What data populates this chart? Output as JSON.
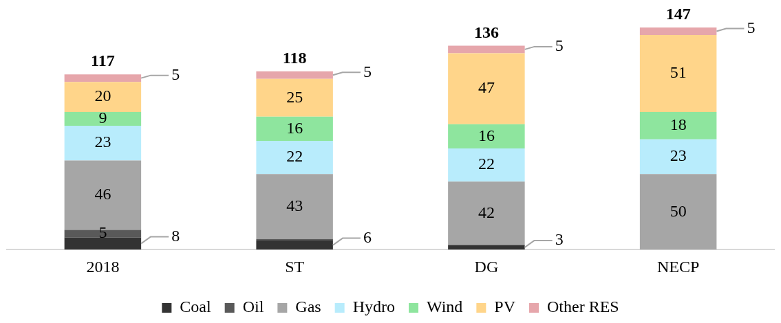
{
  "chart_data": {
    "type": "bar",
    "stacked": true,
    "categories": [
      "2018",
      "ST",
      "DG",
      "NECP"
    ],
    "series": [
      {
        "name": "Coal",
        "color": "#333333",
        "values": [
          8,
          6,
          3,
          null
        ],
        "value_labels": [
          "8",
          "6",
          "3",
          null
        ]
      },
      {
        "name": "Oil",
        "color": "#595959",
        "values": [
          5,
          1,
          null,
          null
        ],
        "value_labels": [
          "5",
          null,
          null,
          null
        ]
      },
      {
        "name": "Gas",
        "color": "#a6a6a6",
        "values": [
          46,
          43,
          42,
          50
        ],
        "value_labels": [
          "46",
          "43",
          "42",
          "50"
        ]
      },
      {
        "name": "Hydro",
        "color": "#b8ecfc",
        "values": [
          23,
          22,
          22,
          23
        ],
        "value_labels": [
          "23",
          "22",
          "22",
          "23"
        ]
      },
      {
        "name": "Wind",
        "color": "#8ee59e",
        "values": [
          9,
          16,
          16,
          18
        ],
        "value_labels": [
          "9",
          "16",
          "16",
          "18"
        ]
      },
      {
        "name": "PV",
        "color": "#ffd58a",
        "values": [
          20,
          25,
          47,
          51
        ],
        "value_labels": [
          "20",
          "25",
          "47",
          "51"
        ]
      },
      {
        "name": "Other RES",
        "color": "#e6a6ab",
        "values": [
          5,
          5,
          5,
          5
        ],
        "value_labels": [
          "5",
          "5",
          "5",
          "5"
        ]
      }
    ],
    "totals": [
      "117",
      "118",
      "136",
      "147"
    ],
    "legend": "bottom",
    "grid": false,
    "tick_labels": "x"
  }
}
